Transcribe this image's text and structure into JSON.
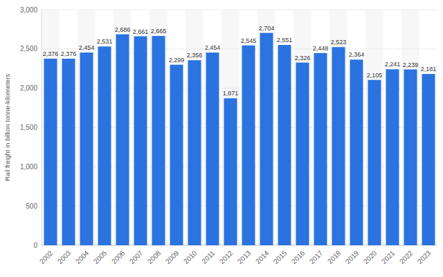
{
  "chart_data": {
    "type": "bar",
    "ylabel": "Rail freight in billion tonne-kilometers",
    "categories": [
      "2002",
      "2003",
      "2004",
      "2005",
      "2006",
      "2007",
      "2008",
      "2009",
      "2010",
      "2011",
      "2012",
      "2013",
      "2014",
      "2015",
      "2016",
      "2017",
      "2018",
      "2019",
      "2020",
      "2021",
      "2022",
      "2023"
    ],
    "values": [
      2376,
      2376,
      2454,
      2531,
      2686,
      2661,
      2665,
      2299,
      2356,
      2454,
      1871,
      2545,
      2704,
      2551,
      2326,
      2448,
      2523,
      2364,
      2105,
      2241,
      2239,
      2181
    ],
    "value_labels": [
      "2,376",
      "2,376",
      "2,454",
      "2,531",
      "2,686",
      "2,661",
      "2,665",
      "2,299",
      "2,356",
      "2,454",
      "1,871",
      "2,545",
      "2,704",
      "2,551",
      "2,326",
      "2,448",
      "2,523",
      "2,364",
      "2,105",
      "2,241",
      "2,239",
      "2,181"
    ],
    "color": "#2a73e0",
    "ylim": [
      0,
      3000
    ],
    "yticks": [
      0,
      500,
      {
        "value": 1000,
        "label": "1,000"
      },
      {
        "value": 1500,
        "label": "1,500"
      },
      {
        "value": 2000,
        "label": "2,000"
      },
      {
        "value": 2500,
        "label": "2,500"
      },
      {
        "value": 3000,
        "label": "3,000"
      }
    ],
    "grid": true,
    "data_labels": true
  }
}
